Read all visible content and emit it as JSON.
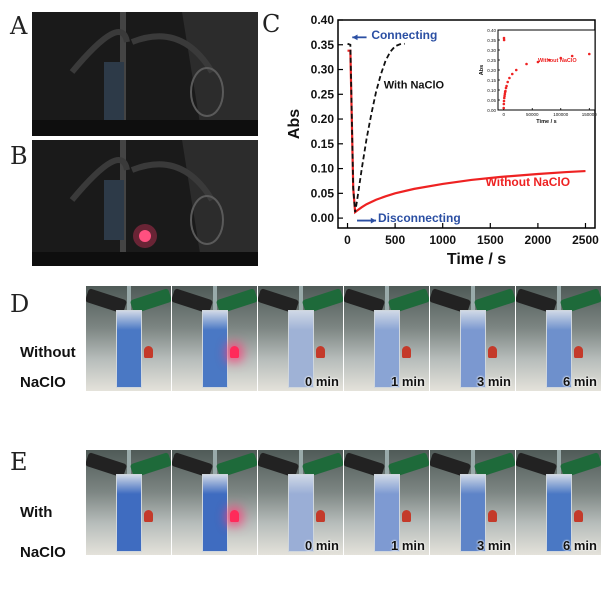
{
  "panels": {
    "A": "A",
    "B": "B",
    "C": "C",
    "D": "D",
    "E": "E"
  },
  "row_labels": {
    "without_line1": "Without",
    "without_line2": "NaClO",
    "with_line1": "With",
    "with_line2": "NaClO"
  },
  "time_labels": [
    "0 min",
    "1 min",
    "3 min",
    "6 min"
  ],
  "frames_D": [
    {
      "led_on": false,
      "cuvette": "#4a78c4",
      "time": ""
    },
    {
      "led_on": true,
      "cuvette": "#4a78c4",
      "time": ""
    },
    {
      "led_on": false,
      "cuvette": "#9fb2d6",
      "time": "0 min"
    },
    {
      "led_on": false,
      "cuvette": "#8aa4d4",
      "time": "1 min"
    },
    {
      "led_on": false,
      "cuvette": "#7b98d0",
      "time": "3 min"
    },
    {
      "led_on": false,
      "cuvette": "#6e90cc",
      "time": "6 min"
    }
  ],
  "frames_E": [
    {
      "led_on": false,
      "cuvette": "#3f6cc0",
      "time": ""
    },
    {
      "led_on": true,
      "cuvette": "#3f6cc0",
      "time": ""
    },
    {
      "led_on": false,
      "cuvette": "#9aaed6",
      "time": "0 min"
    },
    {
      "led_on": false,
      "cuvette": "#7e9ad2",
      "time": "1 min"
    },
    {
      "led_on": false,
      "cuvette": "#5e84c8",
      "time": "3 min"
    },
    {
      "led_on": false,
      "cuvette": "#4a78c4",
      "time": "6 min"
    }
  ],
  "chart_data": {
    "type": "line",
    "xlabel": "Time / s",
    "ylabel": "Abs",
    "xlim": [
      -100,
      2600
    ],
    "ylim": [
      -0.02,
      0.4
    ],
    "xticks": [
      0,
      500,
      1000,
      1500,
      2000,
      2500
    ],
    "yticks": [
      0.0,
      0.05,
      0.1,
      0.15,
      0.2,
      0.25,
      0.3,
      0.35,
      0.4
    ],
    "ytick_labels": [
      "0.00",
      "0.05",
      "0.10",
      "0.15",
      "0.20",
      "0.25",
      "0.30",
      "0.35",
      "0.40"
    ],
    "annotations": {
      "connecting": "Connecting",
      "disconnecting": "Disconnecting",
      "with": "With NaClO",
      "without": "Without NaClO"
    },
    "series": [
      {
        "name": "Without NaClO",
        "color": "#ee2222",
        "style": "solid",
        "x": [
          0,
          30,
          60,
          80,
          100,
          150,
          200,
          300,
          400,
          500,
          700,
          1000,
          1300,
          1600,
          2000,
          2300,
          2500
        ],
        "y": [
          0.338,
          0.338,
          0.06,
          0.012,
          0.015,
          0.022,
          0.028,
          0.037,
          0.044,
          0.05,
          0.059,
          0.069,
          0.077,
          0.083,
          0.089,
          0.093,
          0.095
        ]
      },
      {
        "name": "With NaClO",
        "color": "#111111",
        "style": "dashed",
        "x": [
          0,
          30,
          60,
          80,
          100,
          150,
          200,
          250,
          300,
          350,
          400,
          450,
          500,
          550,
          600
        ],
        "y": [
          0.352,
          0.35,
          0.06,
          0.012,
          0.035,
          0.1,
          0.16,
          0.21,
          0.255,
          0.29,
          0.318,
          0.336,
          0.347,
          0.351,
          0.352
        ]
      }
    ],
    "inset": {
      "type": "scatter",
      "color": "#ee2222",
      "ylabel": "Abs",
      "xlabel": "Time / s",
      "legend": "Without NaClO",
      "xticks": [
        0,
        50000,
        100000,
        150000
      ],
      "xtick_labels": [
        "0",
        "50000",
        "100000",
        "150000"
      ],
      "yticks": [
        0.0,
        0.05,
        0.1,
        0.15,
        0.2,
        0.25,
        0.3,
        0.35,
        0.4
      ],
      "ytick_labels": [
        "0.00",
        "0.05",
        "0.10",
        "0.15",
        "0.20",
        "0.25",
        "0.30",
        "0.35",
        "0.40"
      ],
      "xlim": [
        -10000,
        160000
      ],
      "ylim": [
        0,
        0.4
      ],
      "x": [
        0,
        200,
        500,
        1000,
        1500,
        2000,
        2500,
        3000,
        4000,
        5000,
        7000,
        10000,
        15000,
        22000,
        40000,
        60000,
        80000,
        100000,
        120000,
        150000,
        500,
        700
      ],
      "y": [
        0.01,
        0.03,
        0.045,
        0.06,
        0.07,
        0.08,
        0.09,
        0.095,
        0.11,
        0.12,
        0.14,
        0.16,
        0.18,
        0.2,
        0.23,
        0.24,
        0.25,
        0.26,
        0.27,
        0.28,
        0.36,
        0.35
      ]
    }
  }
}
